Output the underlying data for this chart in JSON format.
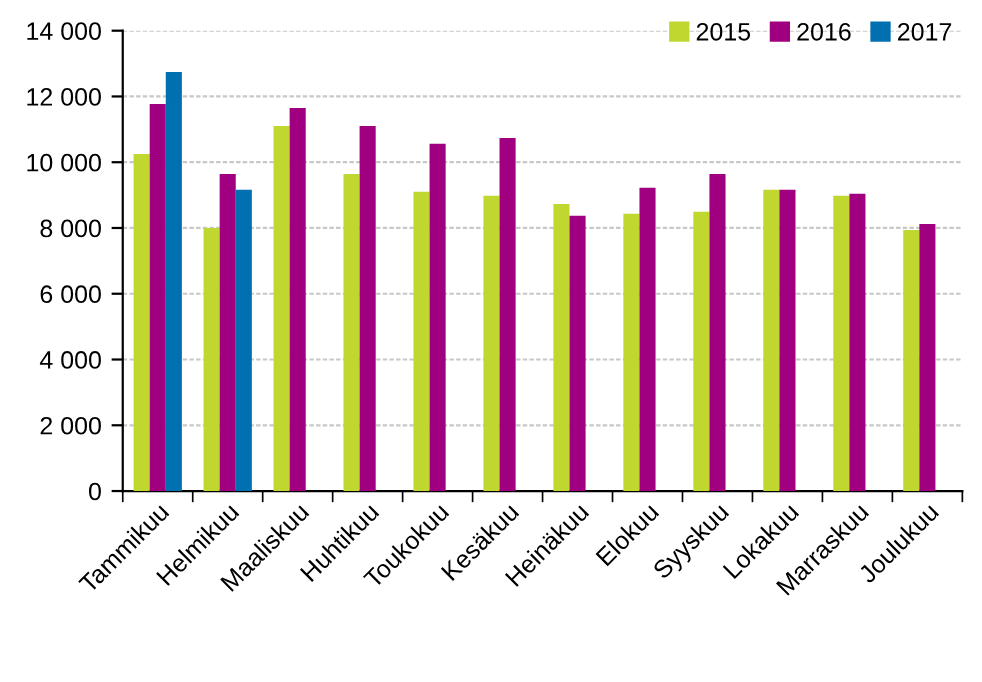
{
  "chart_data": {
    "type": "bar",
    "categories": [
      "Tammikuu",
      "Helmikuu",
      "Maaliskuu",
      "Huhtikuu",
      "Toukokuu",
      "Kesäkuu",
      "Heinäkuu",
      "Elokuu",
      "Syyskuu",
      "Lokakuu",
      "Marraskuu",
      "Joulukuu"
    ],
    "series": [
      {
        "name": "2015",
        "color": "#c0d730",
        "values": [
          10250,
          8000,
          11100,
          9640,
          9100,
          8980,
          8730,
          8430,
          8490,
          9160,
          8980,
          7940
        ]
      },
      {
        "name": "2016",
        "color": "#a0007f",
        "values": [
          11770,
          9640,
          11650,
          11100,
          10560,
          10740,
          8370,
          9220,
          9640,
          9160,
          9040,
          8120
        ]
      },
      {
        "name": "2017",
        "color": "#0070b0",
        "values": [
          12740,
          9160,
          null,
          null,
          null,
          null,
          null,
          null,
          null,
          null,
          null,
          null
        ]
      }
    ],
    "ylim": [
      0,
      14000
    ],
    "yticks": [
      {
        "value": 0,
        "label": "0"
      },
      {
        "value": 2000,
        "label": "2 000"
      },
      {
        "value": 4000,
        "label": "4 000"
      },
      {
        "value": 6000,
        "label": "6 000"
      },
      {
        "value": 8000,
        "label": "8 000"
      },
      {
        "value": 10000,
        "label": "10 000"
      },
      {
        "value": 12000,
        "label": "12 000"
      },
      {
        "value": 14000,
        "label": "14 000"
      }
    ],
    "grid": "y",
    "legend": "top right"
  }
}
